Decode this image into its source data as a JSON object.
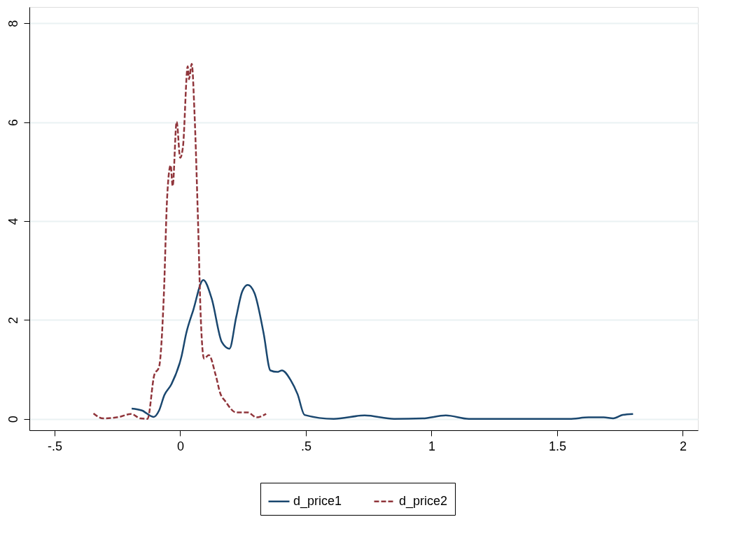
{
  "chart_data": {
    "type": "line",
    "xlim": [
      -0.6,
      2.06
    ],
    "ylim": [
      -0.23,
      8.33
    ],
    "xticks": [
      {
        "value": -0.5,
        "label": "-.5"
      },
      0,
      {
        "value": 0.5,
        "label": ".5"
      },
      1,
      1.5,
      2
    ],
    "yticks": [
      0,
      2,
      4,
      6,
      8
    ],
    "grid": "y",
    "legend": "bottom",
    "series": [
      {
        "name": "d_price1",
        "color": "#1a476f",
        "line_style": "solid",
        "x": [
          -0.193,
          -0.152,
          -0.106,
          -0.084,
          -0.063,
          -0.035,
          0.005,
          0.024,
          0.052,
          0.092,
          0.125,
          0.166,
          0.196,
          0.223,
          0.247,
          0.269,
          0.296,
          0.332,
          0.359,
          0.386,
          0.405,
          0.44,
          0.467,
          0.495,
          0.611,
          0.734,
          0.851,
          0.965,
          1.057,
          1.149,
          1.209,
          1.5,
          1.549,
          1.625,
          1.685,
          1.723,
          1.761,
          1.802
        ],
        "values": [
          0.21,
          0.17,
          0.04,
          0.17,
          0.48,
          0.7,
          1.26,
          1.73,
          2.2,
          2.81,
          2.44,
          1.55,
          1.42,
          2.06,
          2.58,
          2.71,
          2.54,
          1.73,
          0.98,
          0.95,
          0.98,
          0.78,
          0.5,
          0.08,
          0,
          0.07,
          0,
          0.01,
          0.07,
          0,
          0,
          0,
          0,
          0.03,
          0.03,
          0.01,
          0.08,
          0.1
        ]
      },
      {
        "name": "d_price2",
        "color": "#90353b",
        "line_style": "dashed",
        "x": [
          -0.345,
          -0.307,
          -0.242,
          -0.196,
          -0.158,
          -0.13,
          -0.103,
          -0.084,
          -0.065,
          -0.052,
          -0.038,
          -0.03,
          -0.014,
          0.0,
          0.011,
          0.03,
          0.035,
          0.046,
          0.057,
          0.071,
          0.082,
          0.095,
          0.114,
          0.141,
          0.16,
          0.179,
          0.223,
          0.269,
          0.304,
          0.342
        ],
        "values": [
          0.11,
          0.01,
          0.04,
          0.1,
          0.01,
          0,
          0.89,
          1.05,
          2.51,
          4.47,
          5.13,
          4.71,
          6.01,
          5.28,
          5.5,
          7.13,
          6.87,
          7.18,
          6.18,
          3.99,
          2.03,
          1.22,
          1.29,
          0.89,
          0.51,
          0.36,
          0.13,
          0.13,
          0.03,
          0.1
        ]
      }
    ]
  }
}
